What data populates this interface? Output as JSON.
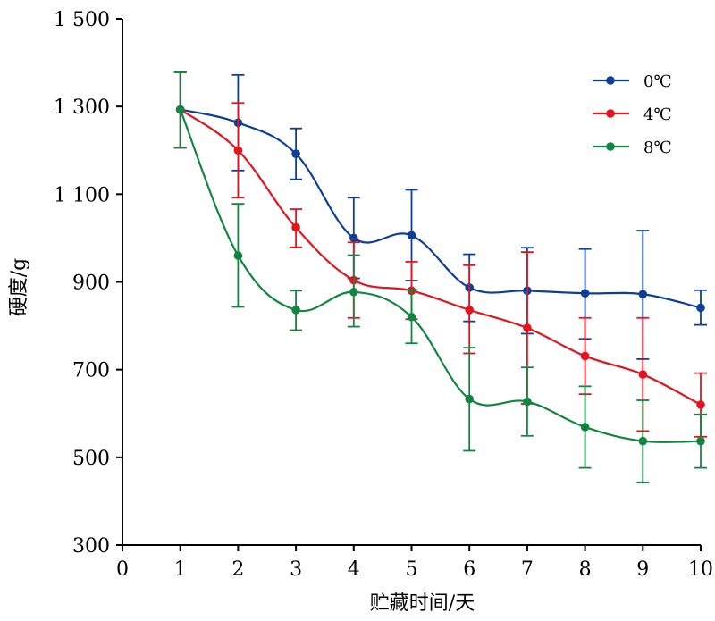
{
  "chart_data": {
    "type": "line",
    "xlabel": "贮藏时间/天",
    "ylabel": "硬度/g",
    "xlim": [
      0,
      10
    ],
    "ylim": [
      300,
      1500
    ],
    "x_ticks": [
      0,
      1,
      2,
      3,
      4,
      5,
      6,
      7,
      8,
      9,
      10
    ],
    "x_tick_labels": [
      "0",
      "1",
      "2",
      "3",
      "4",
      "5",
      "6",
      "7",
      "8",
      "9",
      "10"
    ],
    "y_ticks": [
      300,
      500,
      700,
      900,
      1100,
      1300,
      1500
    ],
    "y_tick_labels": [
      "300",
      "500",
      "700",
      "900",
      "1 100",
      "1 300",
      "1 500"
    ],
    "grid": false,
    "legend_position": "top-right",
    "x": [
      1,
      2,
      3,
      4,
      5,
      6,
      7,
      8,
      9,
      10
    ],
    "series": [
      {
        "name": "0℃",
        "color": "#0d3f99",
        "values": [
          1293,
          1263,
          1192,
          1000,
          1006,
          887,
          880,
          874,
          872,
          841
        ],
        "err_high": [
          1378,
          1372,
          1250,
          1092,
          1110,
          963,
          978,
          975,
          1017,
          881
        ],
        "err_low": [
          1206,
          1154,
          1134,
          908,
          903,
          810,
          782,
          770,
          724,
          802
        ]
      },
      {
        "name": "4℃",
        "color": "#e4141e",
        "values": [
          1293,
          1200,
          1024,
          904,
          880,
          836,
          795,
          731,
          689,
          620
        ],
        "err_high": [
          1378,
          1308,
          1066,
          990,
          946,
          938,
          968,
          818,
          818,
          692
        ],
        "err_low": [
          1206,
          1092,
          979,
          818,
          815,
          737,
          622,
          644,
          560,
          547
        ]
      },
      {
        "name": "8℃",
        "color": "#118641",
        "values": [
          1293,
          960,
          836,
          877,
          820,
          633,
          627,
          569,
          537,
          537
        ],
        "err_high": [
          1378,
          1078,
          880,
          961,
          882,
          750,
          705,
          662,
          630,
          598
        ],
        "err_low": [
          1206,
          843,
          790,
          798,
          760,
          515,
          549,
          476,
          443,
          476
        ]
      }
    ]
  }
}
